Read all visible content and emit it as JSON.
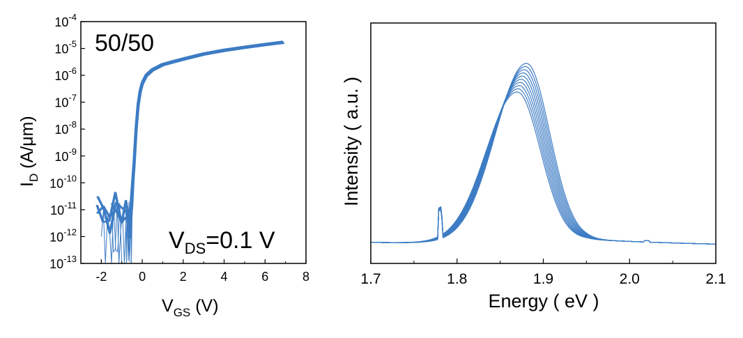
{
  "chart_data": [
    {
      "type": "line",
      "annotation_label": "50/50",
      "bias_label": {
        "main": "V",
        "sub": "DS",
        "rest": "=0.1 V"
      },
      "xlabel": {
        "main": "V",
        "sub": "GS",
        "rest": " (V)"
      },
      "ylabel": {
        "main": "I",
        "sub": "D",
        "rest": " (A/μm)"
      },
      "xlim": [
        -3,
        8
      ],
      "ylim": [
        1e-13,
        0.0001
      ],
      "yscale": "log",
      "xticks": [
        -2,
        0,
        2,
        4,
        6,
        8
      ],
      "yticks": [
        {
          "base": "10",
          "exp": "-13"
        },
        {
          "base": "10",
          "exp": "-12"
        },
        {
          "base": "10",
          "exp": "-11"
        },
        {
          "base": "10",
          "exp": "-10"
        },
        {
          "base": "10",
          "exp": "-9"
        },
        {
          "base": "10",
          "exp": "-8"
        },
        {
          "base": "10",
          "exp": "-7"
        },
        {
          "base": "10",
          "exp": "-6"
        },
        {
          "base": "10",
          "exp": "-5"
        },
        {
          "base": "10",
          "exp": "-4"
        }
      ],
      "color": "#3d7cc4",
      "series": [
        {
          "x": [
            -2.2,
            -1.9,
            -1.6,
            -1.3,
            -1.0,
            -0.8,
            -0.6,
            -0.5,
            -0.4,
            -0.3,
            -0.2,
            -0.1,
            0.0,
            0.2,
            0.5,
            1.0,
            1.5,
            2.0,
            2.5,
            3.0,
            4.0,
            5.0,
            6.0,
            6.9
          ],
          "y": [
            1.5e-11,
            8e-12,
            3e-12,
            2e-11,
            5e-12,
            1e-11,
            2e-12,
            3e-11,
            5e-10,
            1e-08,
            8e-08,
            2.5e-07,
            5e-07,
            1e-06,
            1.6e-06,
            2.5e-06,
            3.2e-06,
            4e-06,
            5e-06,
            6.2e-06,
            8.5e-06,
            1.1e-05,
            1.4e-05,
            1.7e-05
          ]
        }
      ]
    },
    {
      "type": "line",
      "xlabel": "Energy ( eV )",
      "ylabel": "Intensity ( a.u. )",
      "xlim": [
        1.7,
        2.1
      ],
      "xticks": [
        "1.7",
        "1.8",
        "1.9",
        "2.0",
        "2.1"
      ],
      "ytick_labels": false,
      "color": "#3d7cc4",
      "peak_energy": 1.875,
      "curve_count": 10
    }
  ]
}
